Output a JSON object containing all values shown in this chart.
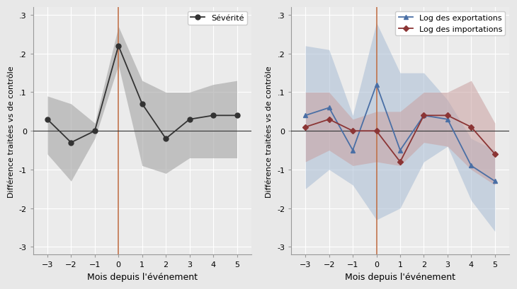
{
  "x": [
    -3,
    -2,
    -1,
    0,
    1,
    2,
    3,
    4,
    5
  ],
  "sev_y": [
    0.03,
    -0.03,
    0.0,
    0.22,
    0.07,
    -0.02,
    0.03,
    0.04,
    0.04
  ],
  "sev_upper": [
    0.09,
    0.07,
    0.02,
    0.27,
    0.13,
    0.1,
    0.1,
    0.12,
    0.13
  ],
  "sev_lower": [
    -0.06,
    -0.13,
    -0.02,
    0.17,
    -0.09,
    -0.11,
    -0.07,
    -0.07,
    -0.07
  ],
  "exp_y": [
    0.04,
    0.06,
    -0.05,
    0.12,
    -0.05,
    0.04,
    0.03,
    -0.09,
    -0.13
  ],
  "exp_upper": [
    0.22,
    0.21,
    0.04,
    0.28,
    0.15,
    0.15,
    0.08,
    -0.02,
    -0.05
  ],
  "exp_lower": [
    -0.15,
    -0.1,
    -0.14,
    -0.23,
    -0.2,
    -0.08,
    -0.04,
    -0.18,
    -0.26
  ],
  "imp_y": [
    0.01,
    0.03,
    0.0,
    0.0,
    -0.08,
    0.04,
    0.04,
    0.01,
    -0.06
  ],
  "imp_upper": [
    0.1,
    0.1,
    0.03,
    0.05,
    0.05,
    0.1,
    0.1,
    0.13,
    0.02
  ],
  "imp_lower": [
    -0.08,
    -0.05,
    -0.09,
    -0.08,
    -0.09,
    -0.03,
    -0.04,
    -0.1,
    -0.14
  ],
  "sev_color": "#333333",
  "sev_fill": "#aaaaaa",
  "exp_color": "#4a6fa5",
  "exp_fill": "#a8bcd4",
  "imp_color": "#8b3535",
  "imp_fill": "#c9a0a0",
  "vline_color": "#c0724a",
  "hline_color": "#333333",
  "bg_color": "#ebebeb",
  "grid_color": "#ffffff",
  "ylabel": "Différence traitées vs de contrôle",
  "xlabel": "Mois depuis l'événement",
  "ylim": [
    -0.32,
    0.32
  ],
  "legend1_label": "Sévérité",
  "legend2_label1": "Log des exportations",
  "legend2_label2": "Log des importations"
}
